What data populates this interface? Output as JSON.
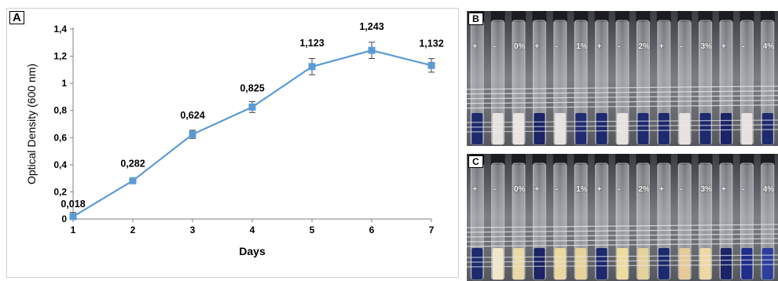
{
  "panels": {
    "a_label": "A",
    "b_label": "B",
    "c_label": "C"
  },
  "chart_data": {
    "type": "line",
    "xlabel": "Days",
    "ylabel": "Optical Density (600 nm)",
    "x": [
      1,
      2,
      3,
      4,
      5,
      6,
      7
    ],
    "x_tick_labels": [
      "1",
      "2",
      "3",
      "4",
      "5",
      "6",
      "7"
    ],
    "values": [
      0.018,
      0.282,
      0.624,
      0.825,
      1.123,
      1.243,
      1.132
    ],
    "data_labels": [
      "0,018",
      "0,282",
      "0,624",
      "0,825",
      "1,123",
      "1,243",
      "1,132"
    ],
    "error": [
      0.03,
      0.02,
      0.03,
      0.04,
      0.06,
      0.06,
      0.05
    ],
    "ylim": [
      0,
      1.4
    ],
    "y_ticks": [
      0,
      0.2,
      0.4,
      0.6,
      0.8,
      1.0,
      1.2,
      1.4
    ],
    "y_tick_labels": [
      "0",
      "0,2",
      "0,4",
      "0,6",
      "0,8",
      "1",
      "1,2",
      "1,4"
    ],
    "grid": false,
    "marker": "square",
    "color": "#5b9bd5"
  },
  "photo_b": {
    "tube_labels": [
      "+",
      "-",
      "0%",
      "+",
      "-",
      "1%",
      "+",
      "-",
      "2%",
      "+",
      "-",
      "3%",
      "+",
      "-",
      "4%"
    ]
  },
  "photo_c": {
    "tube_labels": [
      "+",
      "-",
      "0%",
      "+",
      "-",
      "1%",
      "+",
      "-",
      "2%",
      "+",
      "-",
      "3%",
      "+",
      "-",
      "4%"
    ]
  }
}
